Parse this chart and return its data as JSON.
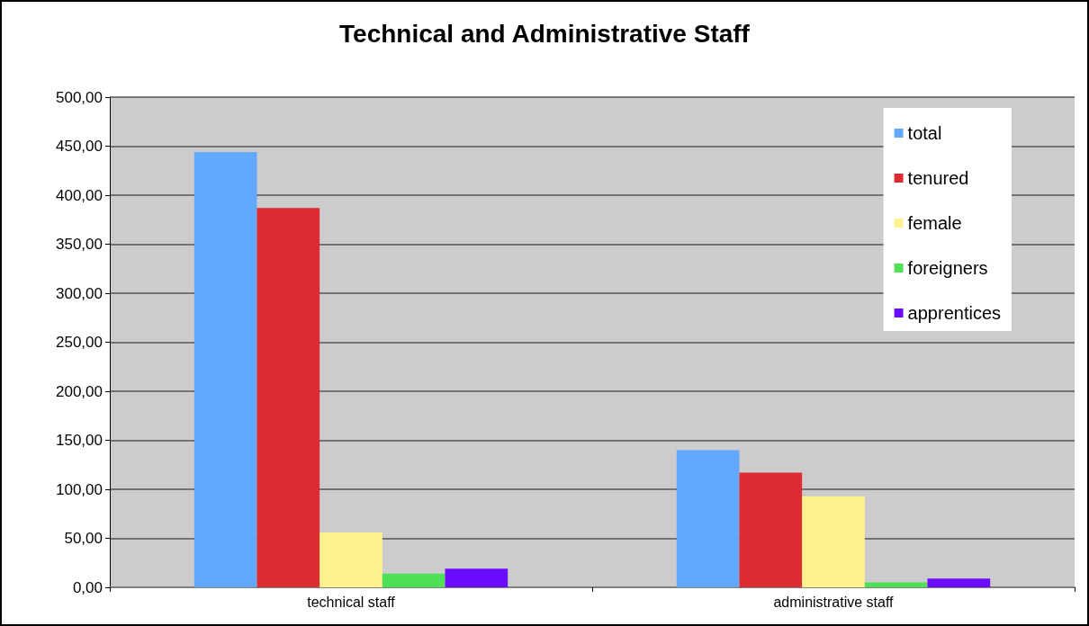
{
  "chart_data": {
    "type": "bar",
    "title": "Technical and Administrative Staff",
    "categories": [
      "technical staff",
      "administrative staff"
    ],
    "series": [
      {
        "name": "total",
        "color": "#62a8fc",
        "values": [
          444,
          140
        ]
      },
      {
        "name": "tenured",
        "color": "#dc2b31",
        "values": [
          387,
          117
        ]
      },
      {
        "name": "female",
        "color": "#fff18c",
        "values": [
          56,
          93
        ]
      },
      {
        "name": "foreigners",
        "color": "#4ee057",
        "values": [
          14,
          5
        ]
      },
      {
        "name": "apprentices",
        "color": "#6b0cfd",
        "values": [
          19,
          9
        ]
      }
    ],
    "ylim": [
      0,
      500
    ],
    "yticks": [
      {
        "value": 0,
        "label": "0,00"
      },
      {
        "value": 50,
        "label": "50,00"
      },
      {
        "value": 100,
        "label": "100,00"
      },
      {
        "value": 150,
        "label": "150,00"
      },
      {
        "value": 200,
        "label": "200,00"
      },
      {
        "value": 250,
        "label": "250,00"
      },
      {
        "value": 300,
        "label": "300,00"
      },
      {
        "value": 350,
        "label": "350,00"
      },
      {
        "value": 400,
        "label": "400,00"
      },
      {
        "value": 450,
        "label": "450,00"
      },
      {
        "value": 500,
        "label": "500,00"
      }
    ],
    "grid": "y",
    "legend": "top right"
  }
}
